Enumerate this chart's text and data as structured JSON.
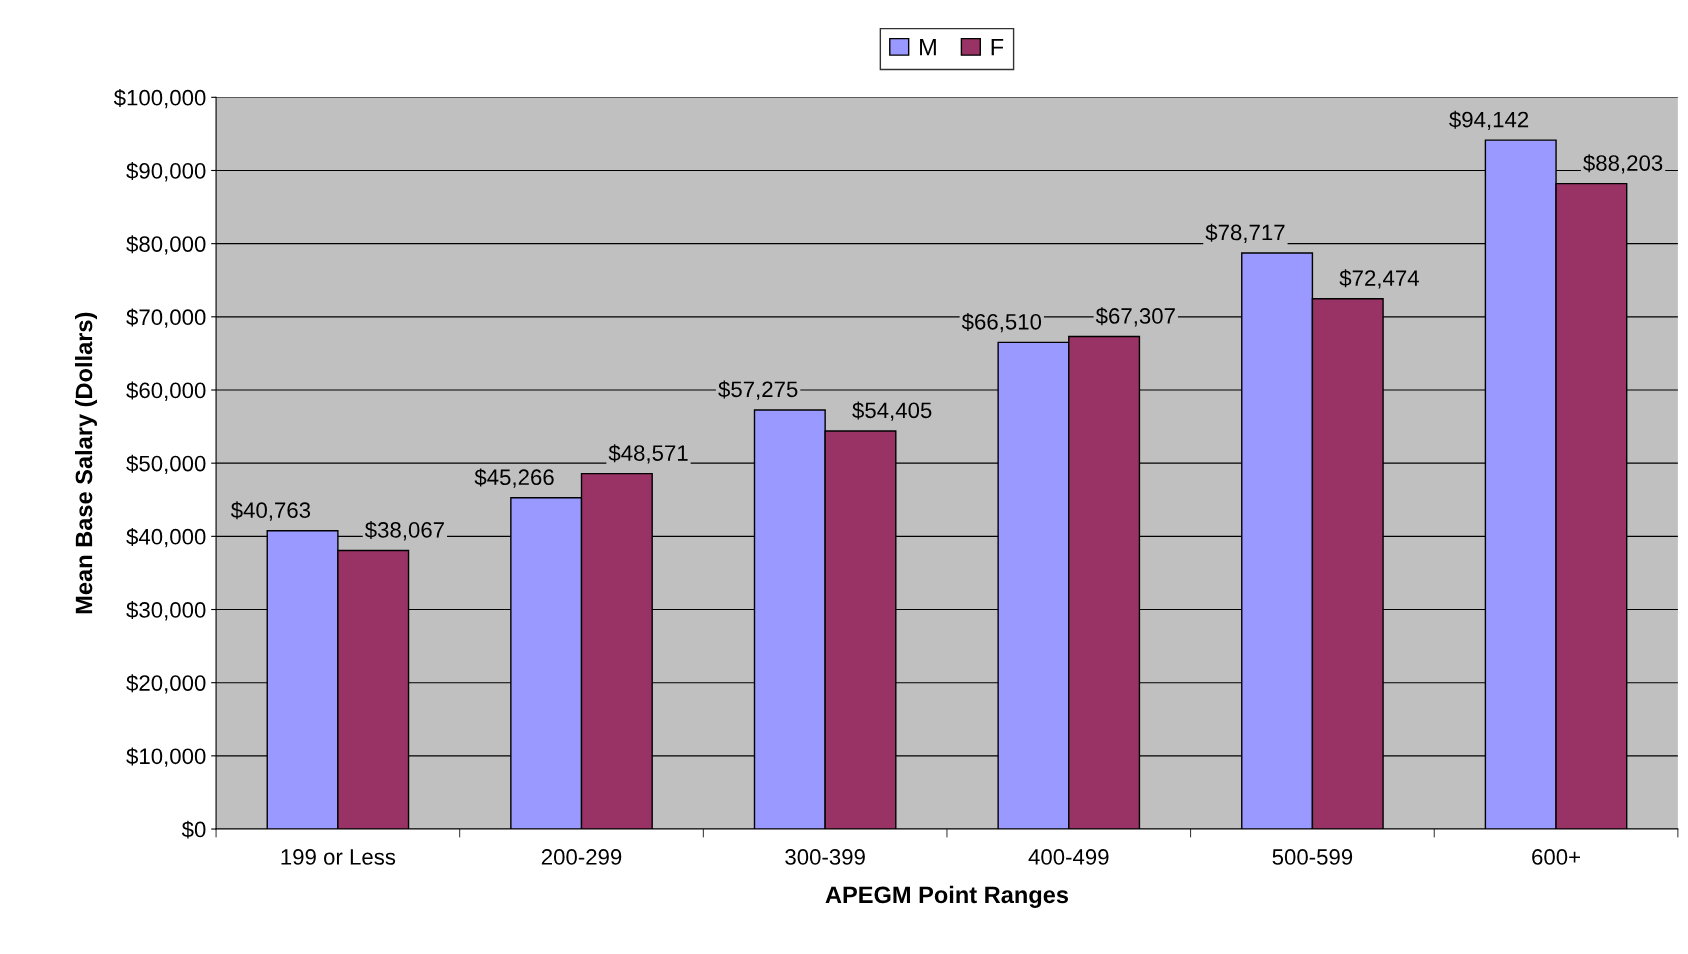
{
  "chart_data": {
    "type": "bar",
    "xlabel": "APEGM Point Ranges",
    "ylabel": "Mean Base Salary (Dollars)",
    "categories": [
      "199 or Less",
      "200-299",
      "300-399",
      "400-499",
      "500-599",
      "600+"
    ],
    "series": [
      {
        "name": "M",
        "color": "#9999ff",
        "values": [
          40763,
          45266,
          57275,
          66510,
          78717,
          94142
        ],
        "value_labels": [
          "$40,763",
          "$45,266",
          "$57,275",
          "$66,510",
          "$78,717",
          "$94,142"
        ]
      },
      {
        "name": "F",
        "color": "#993366",
        "values": [
          38067,
          48571,
          54405,
          67307,
          72474,
          88203
        ],
        "value_labels": [
          "$38,067",
          "$48,571",
          "$54,405",
          "$67,307",
          "$72,474",
          "$88,203"
        ]
      }
    ],
    "ylim": [
      0,
      100000
    ],
    "yticks": [
      {
        "value": 0,
        "label": "$0"
      },
      {
        "value": 10000,
        "label": "$10,000"
      },
      {
        "value": 20000,
        "label": "$20,000"
      },
      {
        "value": 30000,
        "label": "$30,000"
      },
      {
        "value": 40000,
        "label": "$40,000"
      },
      {
        "value": 50000,
        "label": "$50,000"
      },
      {
        "value": 60000,
        "label": "$60,000"
      },
      {
        "value": 70000,
        "label": "$70,000"
      },
      {
        "value": 80000,
        "label": "$80,000"
      },
      {
        "value": 90000,
        "label": "$90,000"
      },
      {
        "value": 100000,
        "label": "$100,000"
      }
    ],
    "grid": "y",
    "legend": "top"
  }
}
